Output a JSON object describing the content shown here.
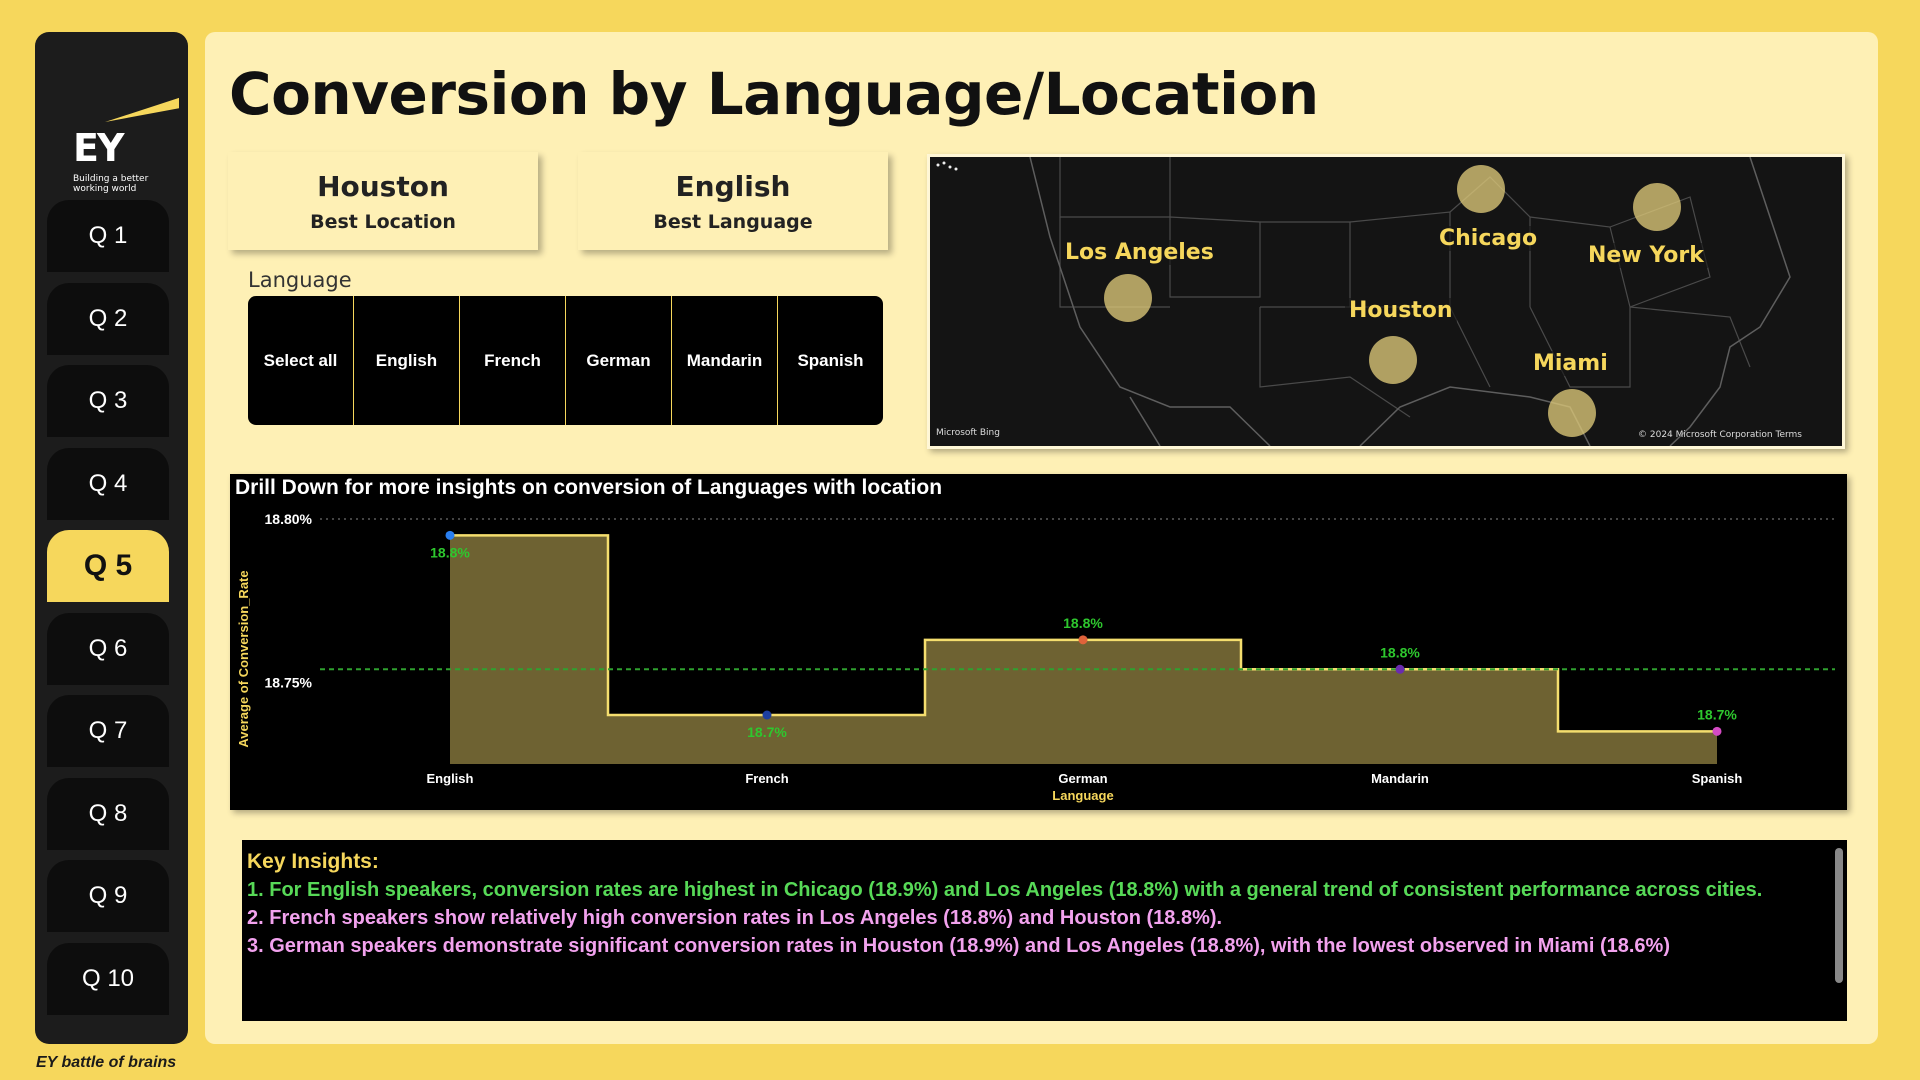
{
  "brand": {
    "logo_text": "EY",
    "tagline": "Building a better working world",
    "footer": "EY battle of brains"
  },
  "nav": {
    "items": [
      "Q 1",
      "Q 2",
      "Q 3",
      "Q 4",
      "Q 5",
      "Q 6",
      "Q 7",
      "Q 8",
      "Q 9",
      "Q 10"
    ],
    "active": "Q 5"
  },
  "page": {
    "title": "Conversion by Language/Location"
  },
  "kpis": {
    "best_location": {
      "value": "Houston",
      "label": "Best Location"
    },
    "best_language": {
      "value": "English",
      "label": "Best Language"
    }
  },
  "slicer": {
    "label": "Language",
    "options": [
      "Select all",
      "English",
      "French",
      "German",
      "Mandarin",
      "Spanish"
    ]
  },
  "map": {
    "cities": [
      "Los Angeles",
      "Chicago",
      "New York",
      "Houston",
      "Miami"
    ],
    "brand": "Microsoft Bing",
    "copyright": "© 2024 Microsoft Corporation  Terms"
  },
  "chart_data": {
    "type": "area",
    "title": "Drill Down for more insights on conversion of Languages with location",
    "xlabel": "Language",
    "ylabel": "Average of Conversion_Rate",
    "categories": [
      "English",
      "French",
      "German",
      "Mandarin",
      "Spanish"
    ],
    "values": [
      18.795,
      18.74,
      18.763,
      18.754,
      18.735
    ],
    "data_labels": [
      "18.8%",
      "18.7%",
      "18.8%",
      "18.8%",
      "18.7%"
    ],
    "y_ticks": [
      "18.80%",
      "18.75%"
    ],
    "ylim": [
      18.725,
      18.8
    ],
    "average_line": 18.754,
    "colors": {
      "fill": "#6e6232",
      "line": "#f5de6e",
      "labels": "#2ec72e",
      "avg": "#2fa12f"
    },
    "point_colors": [
      "#2a7ff0",
      "#1d3fa0",
      "#e0623a",
      "#6a2bb0",
      "#d44ac4"
    ]
  },
  "insights": {
    "title": "Key Insights:",
    "lines": [
      "1. For English speakers, conversion rates are highest in Chicago (18.9%) and Los Angeles (18.8%) with a general trend of consistent performance across cities.",
      "2. French speakers show relatively high conversion rates in Los Angeles (18.8%) and Houston (18.8%).",
      "3. German speakers demonstrate significant conversion rates in Houston (18.9%) and Los Angeles (18.8%), with the lowest observed in Miami (18.6%)"
    ]
  }
}
